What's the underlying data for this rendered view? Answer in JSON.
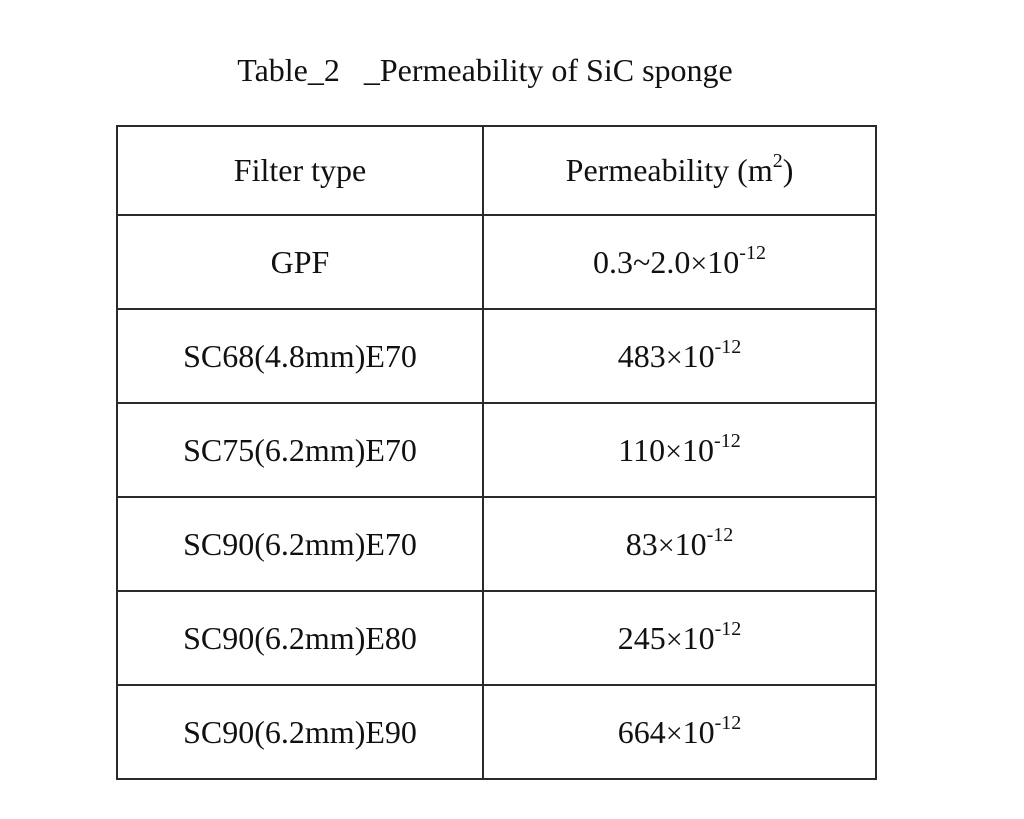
{
  "caption": "Table_2   _Permeability of SiC sponge",
  "table": {
    "headers": {
      "filter_type": "Filter type",
      "permeability_text": "Permeability (m",
      "permeability_sup": "2",
      "permeability_close": ")"
    },
    "rows": [
      {
        "filter": "GPF",
        "value": "0.3~2.0",
        "times": "×",
        "base": "10",
        "exponent": "-12"
      },
      {
        "filter": "SC68(4.8mm)E70",
        "value": "483",
        "times": "×",
        "base": "10",
        "exponent": "-12"
      },
      {
        "filter": "SC75(6.2mm)E70",
        "value": "110",
        "times": "×",
        "base": "10",
        "exponent": "-12"
      },
      {
        "filter": "SC90(6.2mm)E70",
        "value": "83",
        "times": "×",
        "base": "10",
        "exponent": "-12"
      },
      {
        "filter": "SC90(6.2mm)E80",
        "value": "245",
        "times": "×",
        "base": "10",
        "exponent": "-12"
      },
      {
        "filter": "SC90(6.2mm)E90",
        "value": "664",
        "times": "×",
        "base": "10",
        "exponent": "-12"
      }
    ]
  }
}
